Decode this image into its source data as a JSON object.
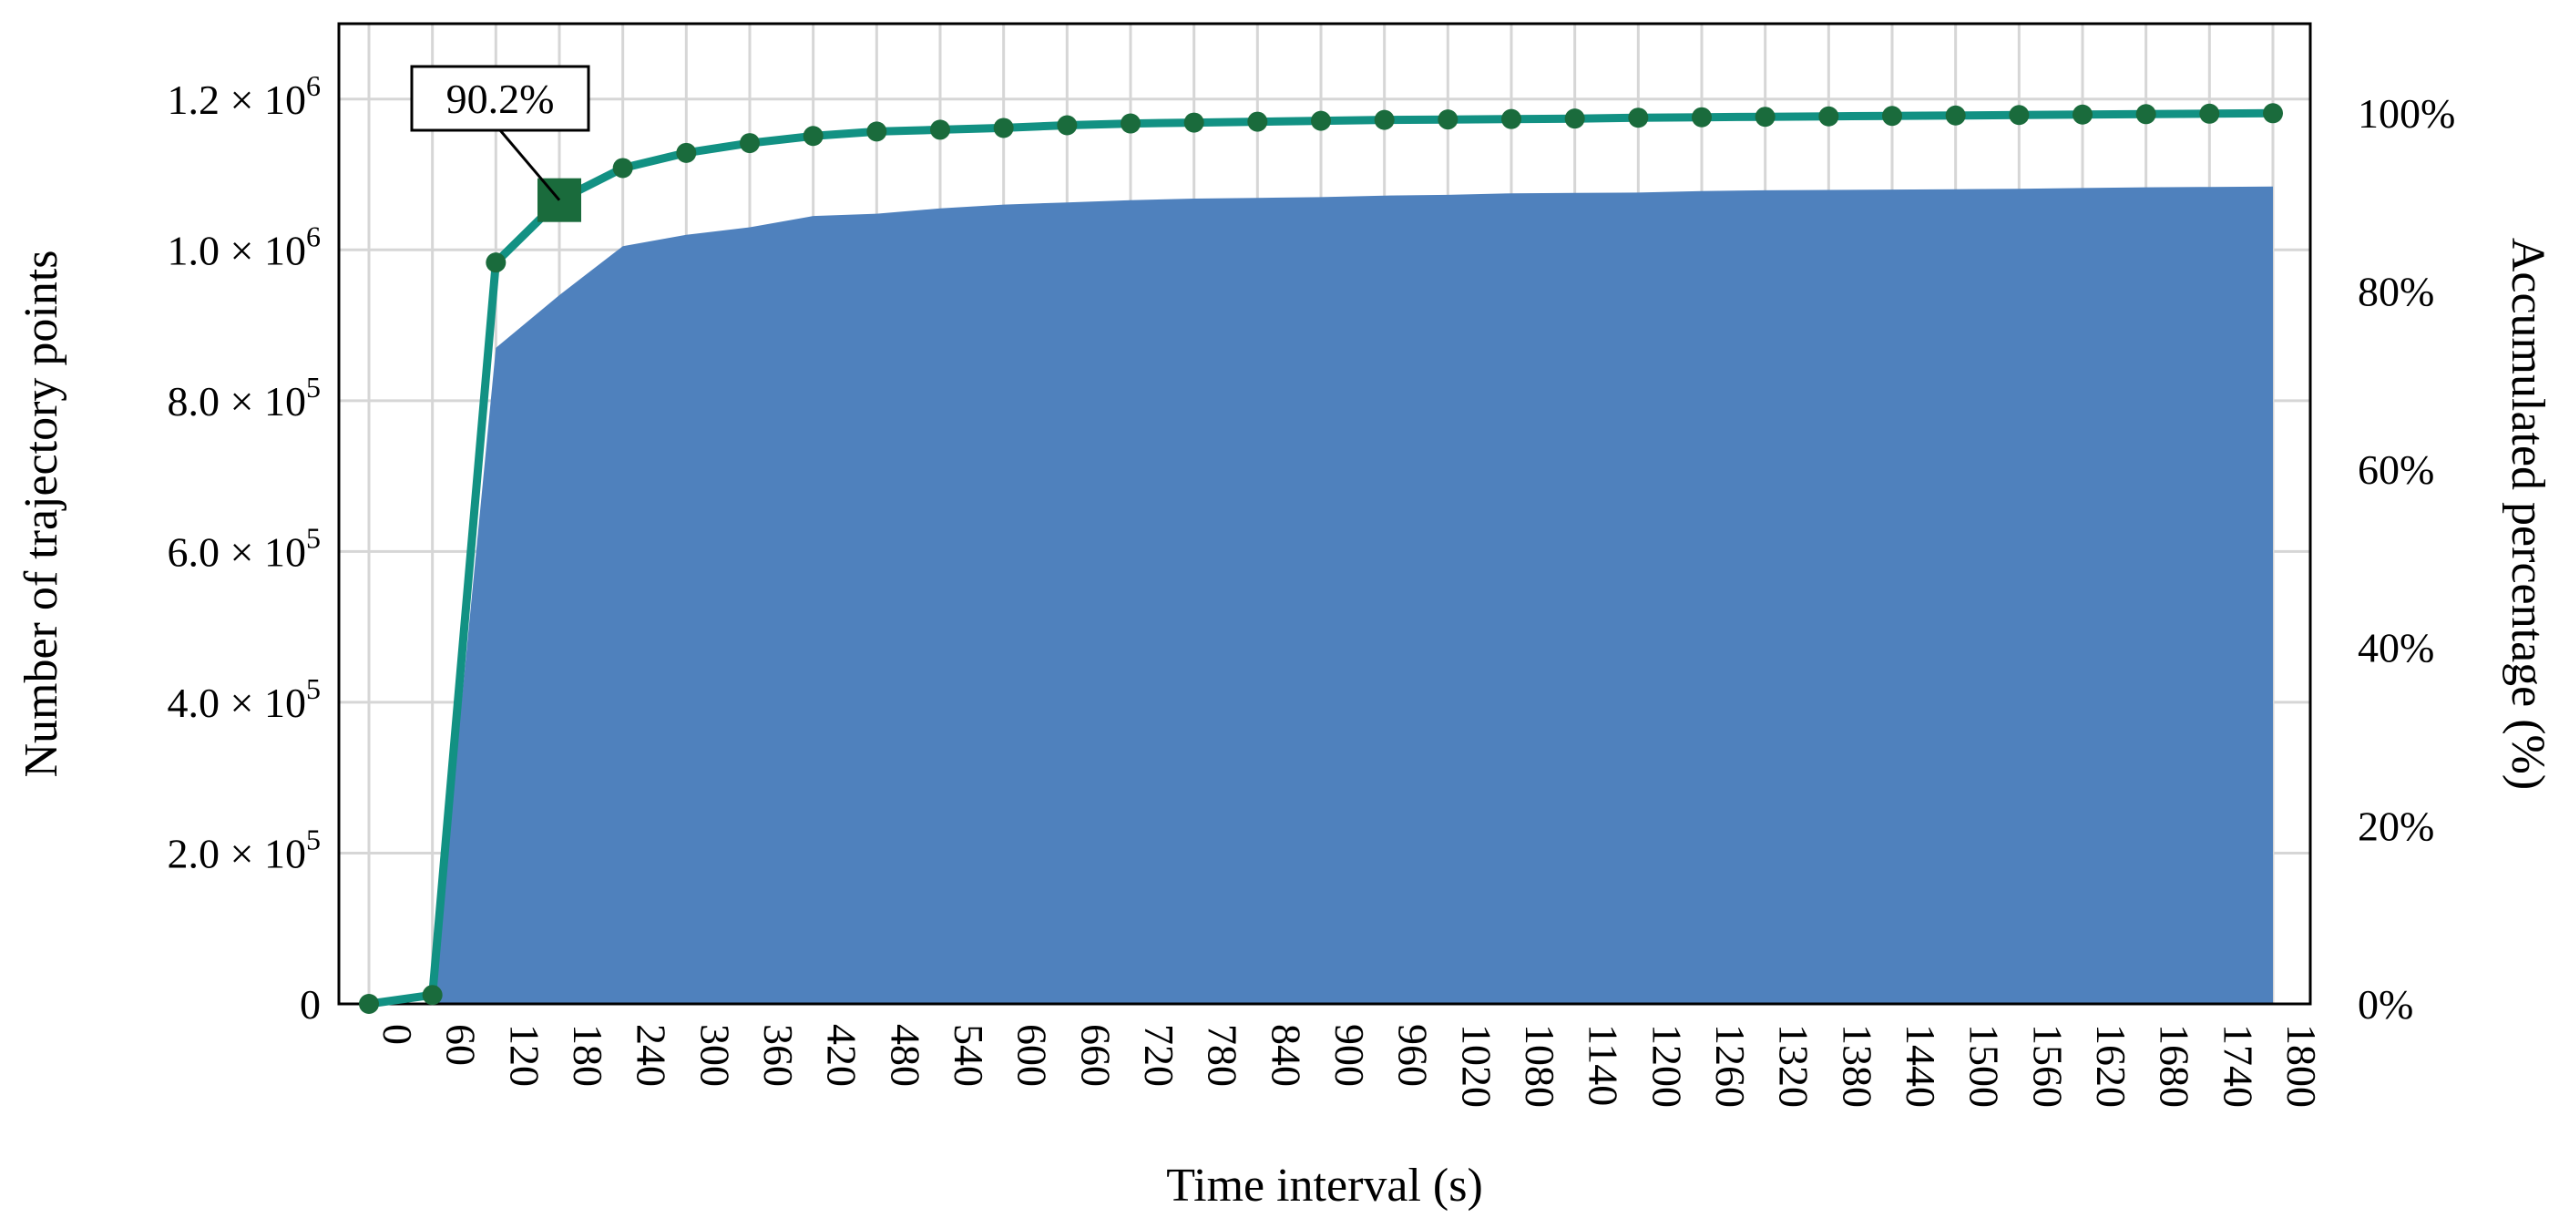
{
  "chart_data": {
    "type": "area",
    "title": "",
    "xlabel": "Time interval (s)",
    "ylabel": "Number of trajectory points",
    "y2label": "Accumulated percentage (%)",
    "x": [
      0,
      60,
      120,
      180,
      240,
      300,
      360,
      420,
      480,
      540,
      600,
      660,
      720,
      780,
      840,
      900,
      960,
      1020,
      1080,
      1140,
      1200,
      1260,
      1320,
      1380,
      1440,
      1500,
      1560,
      1620,
      1680,
      1740,
      1800
    ],
    "xlim": [
      0,
      1800
    ],
    "ylim": [
      0,
      1300000
    ],
    "y2lim": [
      0,
      110
    ],
    "y_tick_labels": [
      {
        "base": "0",
        "exp": ""
      },
      {
        "base": "2.0 × 10",
        "exp": "5"
      },
      {
        "base": "4.0 × 10",
        "exp": "5"
      },
      {
        "base": "6.0 × 10",
        "exp": "5"
      },
      {
        "base": "8.0 × 10",
        "exp": "5"
      },
      {
        "base": "1.0 × 10",
        "exp": "6"
      },
      {
        "base": "1.2 × 10",
        "exp": "6"
      }
    ],
    "y_tick_values": [
      0,
      200000,
      400000,
      600000,
      800000,
      1000000,
      1200000
    ],
    "y2_tick_labels": [
      "0%",
      "20%",
      "40%",
      "60%",
      "80%",
      "100%"
    ],
    "y2_tick_values": [
      0,
      20,
      40,
      60,
      80,
      100
    ],
    "grid": true,
    "series": [
      {
        "type": "area",
        "color": "#4f81bd",
        "axis": "left",
        "values": [
          0,
          0,
          870000,
          940000,
          1005000,
          1020000,
          1030000,
          1045000,
          1048000,
          1055000,
          1060000,
          1063000,
          1066000,
          1068000,
          1069000,
          1070000,
          1072000,
          1073000,
          1075000,
          1075500,
          1076000,
          1078000,
          1079000,
          1079500,
          1080000,
          1080500,
          1081000,
          1082000,
          1083000,
          1083500,
          1084000
        ]
      },
      {
        "type": "line",
        "color": "#129183",
        "marker_color": "#1a6b3c",
        "axis": "right",
        "values": [
          0,
          1.0,
          83.2,
          90.2,
          93.8,
          95.5,
          96.6,
          97.4,
          97.9,
          98.1,
          98.3,
          98.6,
          98.8,
          98.9,
          99.0,
          99.1,
          99.2,
          99.25,
          99.3,
          99.35,
          99.45,
          99.5,
          99.55,
          99.6,
          99.65,
          99.7,
          99.75,
          99.8,
          99.85,
          99.9,
          99.95
        ]
      }
    ],
    "annotations": [
      {
        "label": "90.2%",
        "x": 180,
        "y2": 90.2
      }
    ]
  }
}
